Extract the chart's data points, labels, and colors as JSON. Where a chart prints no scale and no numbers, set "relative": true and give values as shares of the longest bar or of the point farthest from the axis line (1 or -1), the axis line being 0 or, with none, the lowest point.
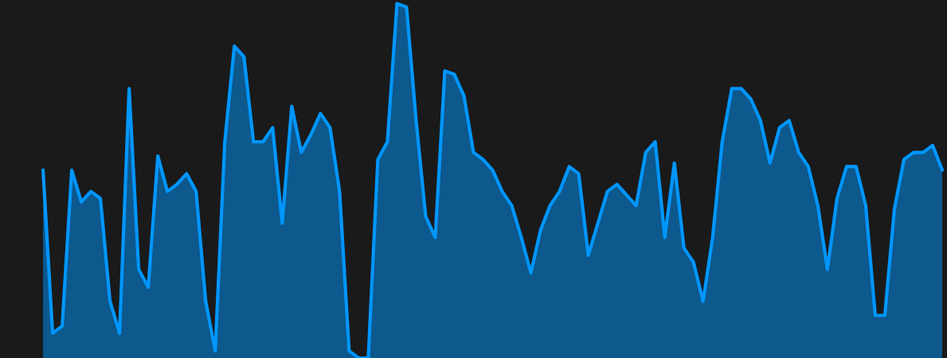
{
  "chart_data": {
    "type": "area",
    "relative": true,
    "categories": [
      null,
      null,
      null,
      null,
      null,
      null,
      null,
      null,
      null,
      null,
      null,
      null,
      null,
      null,
      null,
      null,
      null,
      null,
      null,
      null,
      null,
      null,
      null,
      null,
      null,
      null,
      null,
      null,
      null,
      null,
      null,
      null,
      null,
      null,
      null,
      null,
      null,
      null,
      null,
      null,
      null,
      null,
      null,
      null,
      null,
      null,
      null,
      null,
      null,
      null,
      null,
      null,
      null,
      null,
      null,
      null,
      null,
      null,
      null,
      null,
      null,
      null,
      null,
      null,
      null,
      null,
      null,
      null,
      null,
      null,
      null,
      null,
      null,
      null,
      null,
      null,
      null,
      null,
      null,
      null,
      null,
      null,
      null,
      null,
      null,
      null,
      null,
      null,
      null,
      null,
      null,
      null,
      null,
      null,
      null,
      null,
      null,
      null,
      null
    ],
    "series": [
      {
        "color": "#0096ff",
        "values": [
          null,
          null,
          null,
          null,
          0.53,
          0.07,
          0.09,
          0.53,
          0.44,
          0.47,
          0.45,
          0.16,
          0.07,
          0.76,
          0.25,
          0.2,
          0.57,
          0.47,
          0.49,
          0.52,
          0.47,
          0.16,
          0.02,
          0.61,
          0.88,
          0.85,
          0.61,
          0.61,
          0.65,
          0.38,
          0.71,
          0.58,
          0.63,
          0.69,
          0.65,
          0.47,
          0.02,
          0,
          0,
          0.56,
          0.61,
          1,
          0.99,
          0.67,
          0.4,
          0.34,
          0.81,
          0.8,
          0.74,
          0.58,
          0.56,
          0.53,
          0.47,
          0.43,
          0.34,
          0.24,
          0.36,
          0.43,
          0.47,
          0.54,
          0.52,
          0.29,
          0.38,
          0.47,
          0.49,
          0.46,
          0.43,
          0.58,
          0.61,
          0.34,
          0.55,
          0.31,
          0.27,
          0.16,
          0.34,
          0.61,
          0.76,
          0.76,
          0.73,
          0.67,
          0.55,
          0.65,
          0.67,
          0.58,
          0.54,
          0.43,
          0.25,
          0.45,
          0.54,
          0.54,
          0.43,
          0.12,
          0.12,
          0.42,
          0.56,
          0.58,
          0.58,
          0.6,
          0.53
        ]
      }
    ]
  }
}
